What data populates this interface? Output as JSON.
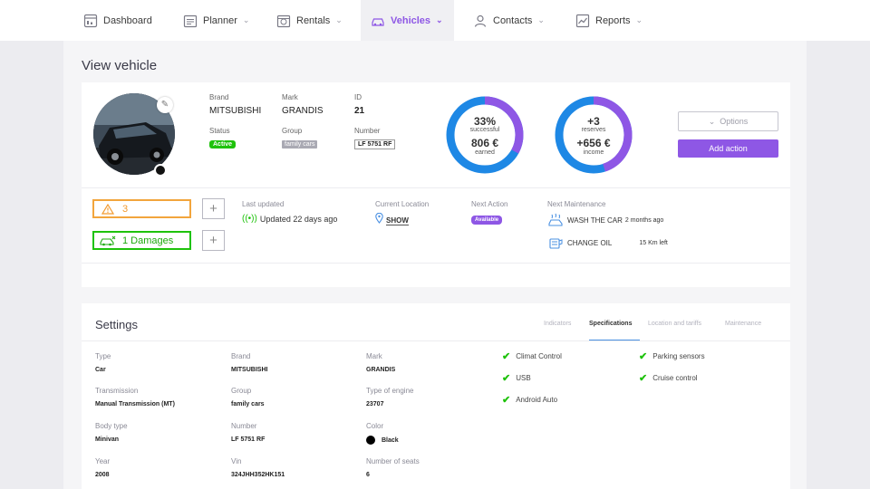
{
  "nav": {
    "items": [
      {
        "label": "Dashboard",
        "icon": "dashboard-icon"
      },
      {
        "label": "Planner",
        "icon": "planner-icon"
      },
      {
        "label": "Rentals",
        "icon": "rentals-icon"
      },
      {
        "label": "Vehicles",
        "icon": "car-icon",
        "active": true
      },
      {
        "label": "Contacts",
        "icon": "contacts-icon"
      },
      {
        "label": "Reports",
        "icon": "reports-icon"
      }
    ]
  },
  "page": {
    "title": "View vehicle"
  },
  "vehicle": {
    "brand_label": "Brand",
    "brand": "MITSUBISHI",
    "mark_label": "Mark",
    "mark": "GRANDIS",
    "id_label": "ID",
    "id": "21",
    "status_label": "Status",
    "status": "Active",
    "group_label": "Group",
    "group": "family cars",
    "number_label": "Number",
    "number": "LF 5751 RF"
  },
  "stats": {
    "success": {
      "percent": "33%",
      "percent_label": "successful",
      "amount": "806 €",
      "amount_label": "earned",
      "fraction": 0.33
    },
    "reserves": {
      "count": "+3",
      "count_label": "reserves",
      "amount": "+656 €",
      "amount_label": "income",
      "fraction": 0.45
    }
  },
  "actions": {
    "options": "Options",
    "add_action": "Add action"
  },
  "alerts": {
    "warnings": "3",
    "damages": "1 Damages"
  },
  "info": {
    "last_updated_label": "Last updated",
    "last_updated": "Updated 22 days ago",
    "location_label": "Current Location",
    "location_link": "SHOW",
    "next_action_label": "Next Action",
    "next_action": "Available",
    "next_maintenance_label": "Next Maintenance",
    "maintenance": [
      {
        "task": "WASH THE CAR",
        "when": "2 months ago"
      },
      {
        "task": "CHANGE OIL",
        "when": "15 Km left"
      }
    ]
  },
  "settings": {
    "title": "Settings",
    "tabs": [
      "Indicators",
      "Specifications",
      "Location and tariffs",
      "Maintenance"
    ],
    "active_tab": "Specifications",
    "fields": [
      {
        "label": "Type",
        "value": "Car"
      },
      {
        "label": "Brand",
        "value": "MITSUBISHI"
      },
      {
        "label": "Mark",
        "value": "GRANDIS"
      },
      {
        "label": "Transmission",
        "value": "Manual Transmission (MT)"
      },
      {
        "label": "Group",
        "value": "family cars"
      },
      {
        "label": "Type of engine",
        "value": "23707"
      },
      {
        "label": "Body type",
        "value": "Minivan"
      },
      {
        "label": "Number",
        "value": "LF 5751 RF"
      },
      {
        "label": "Color",
        "value": "Black"
      },
      {
        "label": "Year",
        "value": "2008"
      },
      {
        "label": "Vin",
        "value": "324JHH352HK151"
      },
      {
        "label": "Number of seats",
        "value": "6"
      }
    ],
    "features": [
      "Climat Control",
      "Parking sensors",
      "USB",
      "Cruise control",
      "Android Auto"
    ]
  },
  "colors": {
    "accent": "#8e57e5",
    "ring_blue": "#1e88e5",
    "success": "#1ec20b",
    "warning": "#f2a53c"
  }
}
